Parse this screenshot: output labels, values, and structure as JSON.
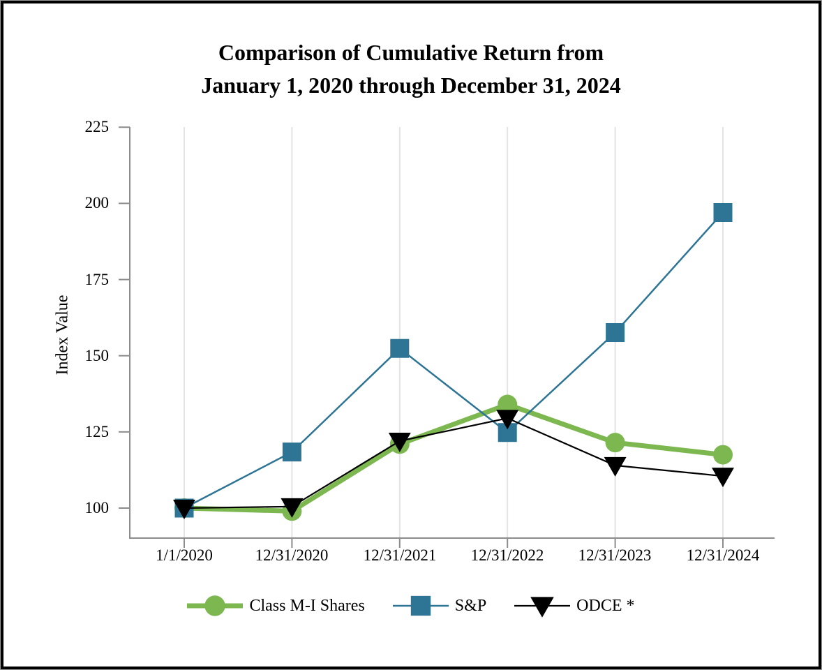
{
  "chart_data": {
    "type": "line",
    "title": "Comparison of Cumulative Return from January 1, 2020 through December 31, 2024",
    "title_line1": "Comparison of Cumulative Return from",
    "title_line2": "January 1, 2020 through December 31, 2024",
    "xlabel": "",
    "ylabel": "Index Value",
    "categories": [
      "1/1/2020",
      "12/31/2020",
      "12/31/2021",
      "12/31/2022",
      "12/31/2023",
      "12/31/2024"
    ],
    "yticks": [
      225,
      200,
      175,
      150,
      125,
      100
    ],
    "ylim": [
      90,
      225
    ],
    "grid": "vertical-only",
    "legend_position": "bottom-center",
    "axis_color": "#8c8c8c",
    "gridline_color": "#e3e3e3",
    "series": [
      {
        "name": "Class M-I Shares",
        "marker": "circle",
        "color": "#7cb750",
        "line_width": 7,
        "values": [
          100,
          99,
          121,
          134,
          121.5,
          117.5
        ]
      },
      {
        "name": "S&P",
        "marker": "square",
        "color": "#2d7495",
        "line_width": 2.5,
        "values": [
          100,
          118.4,
          152.4,
          124.8,
          157.6,
          197
        ]
      },
      {
        "name": "ODCE *",
        "marker": "triangle-down",
        "color": "#000000",
        "line_width": 2.2,
        "values": [
          100,
          100.5,
          122,
          129.5,
          114,
          110.5
        ]
      }
    ]
  }
}
